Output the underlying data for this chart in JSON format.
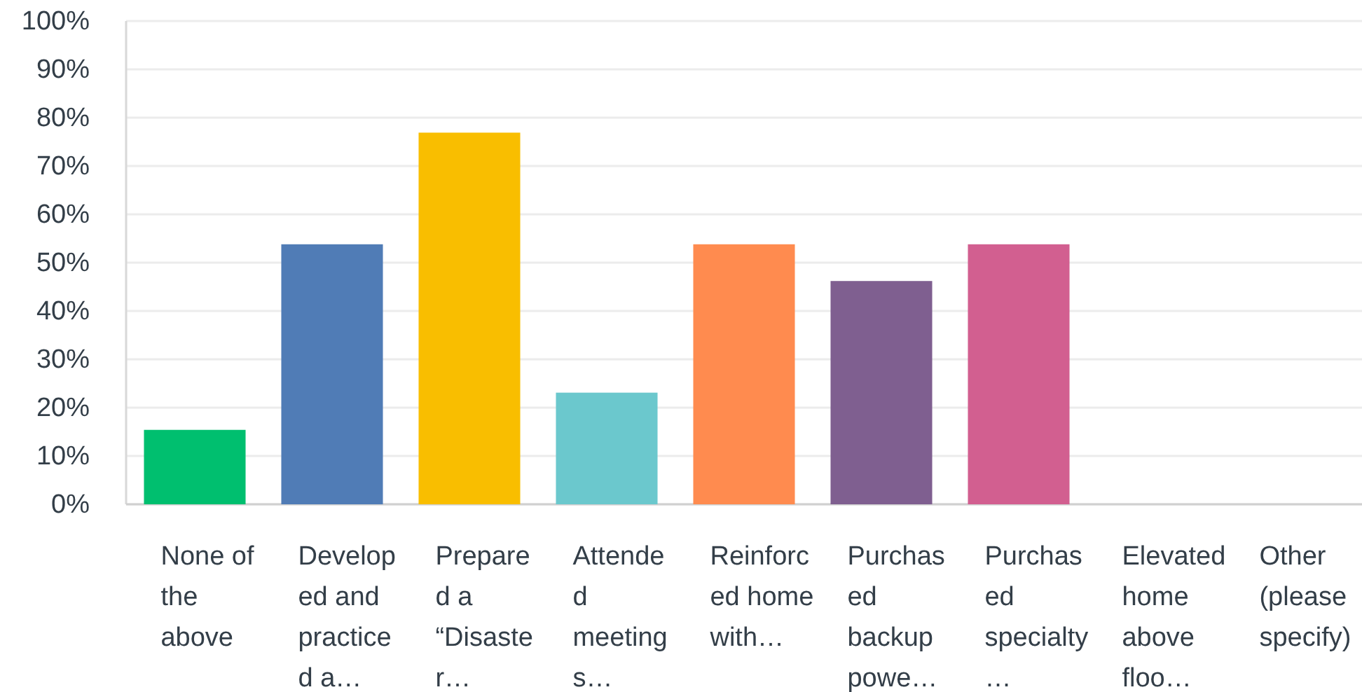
{
  "chart_data": {
    "type": "bar",
    "categories": [
      "None of the above",
      "Developed and practiced a…",
      "Prepared a “Disaster…",
      "Attended meetings…",
      "Reinforced home with…",
      "Purchased backup powe…",
      "Purchased specialty…",
      "Elevated home above floo…",
      "Other (please specify)"
    ],
    "values": [
      15.4,
      53.8,
      76.9,
      23.1,
      53.8,
      46.2,
      53.8,
      0,
      0
    ],
    "colors": [
      "#00bf6f",
      "#507cb6",
      "#f9be00",
      "#6bc8cd",
      "#ff8b4f",
      "#7f5f90",
      "#d25f90",
      "#ba9a72",
      "#666666"
    ],
    "ylim": [
      0,
      100
    ],
    "yticks": [
      {
        "value": 0,
        "label": "0%"
      },
      {
        "value": 10,
        "label": "10%"
      },
      {
        "value": 20,
        "label": "20%"
      },
      {
        "value": 30,
        "label": "30%"
      },
      {
        "value": 40,
        "label": "40%"
      },
      {
        "value": 50,
        "label": "50%"
      },
      {
        "value": 60,
        "label": "60%"
      },
      {
        "value": 70,
        "label": "70%"
      },
      {
        "value": 80,
        "label": "80%"
      },
      {
        "value": 90,
        "label": "90%"
      },
      {
        "value": 100,
        "label": "100%"
      }
    ],
    "grid": "y"
  }
}
